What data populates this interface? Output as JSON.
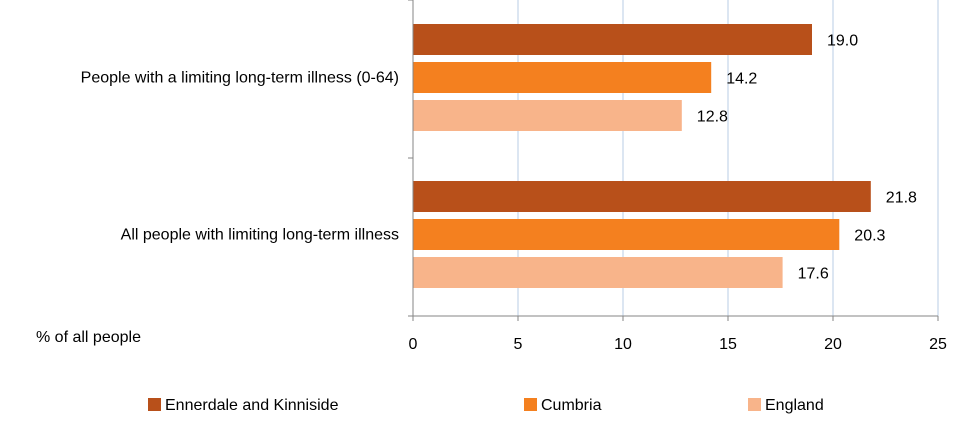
{
  "chart_data": {
    "type": "bar",
    "orientation": "horizontal",
    "categories": [
      "People with a limiting long-term illness (0-64)",
      "All people with limiting long-term illness"
    ],
    "series": [
      {
        "name": "Ennerdale and Kinniside",
        "color": "#B8501A",
        "values": [
          19.0,
          21.8
        ],
        "labels": [
          "19.0",
          "21.8"
        ]
      },
      {
        "name": "Cumbria",
        "color": "#F4801F",
        "values": [
          14.2,
          20.3
        ],
        "labels": [
          "14.2",
          "20.3"
        ]
      },
      {
        "name": "England",
        "color": "#F8B48A",
        "values": [
          12.8,
          17.6
        ],
        "labels": [
          "12.8",
          "17.6"
        ]
      }
    ],
    "xlabel": "% of all people",
    "xlim": [
      0,
      25
    ],
    "xticks": [
      0,
      5,
      10,
      15,
      20,
      25
    ],
    "xtick_labels": [
      "0",
      "5",
      "10",
      "15",
      "20",
      "25"
    ],
    "grid": "vertical",
    "legend_position": "bottom"
  }
}
